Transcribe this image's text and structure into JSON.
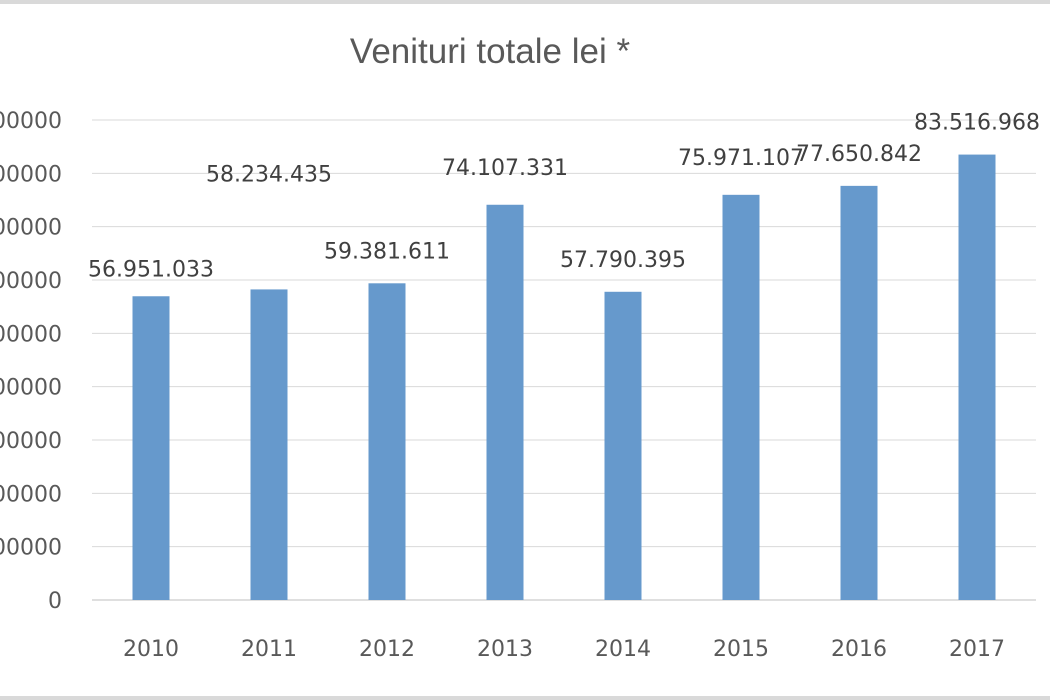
{
  "chart_data": {
    "type": "bar",
    "title": "Venituri totale lei *",
    "categories": [
      "2010",
      "2011",
      "2012",
      "2013",
      "2014",
      "2015",
      "2016",
      "2017"
    ],
    "values": [
      56951033,
      58234435,
      59381611,
      74107331,
      57790395,
      75971107,
      77650842,
      83516968
    ],
    "data_labels": [
      "56.951.033",
      "58.234.435",
      "59.381.611",
      "74.107.331",
      "57.790.395",
      "75.971.107",
      "77.650.842",
      "83.516.968"
    ],
    "y_tick_labels": [
      "0",
      "00000",
      "00000",
      "00000",
      "00000",
      "00000",
      "00000",
      "00000",
      "00000",
      "00000"
    ],
    "ylim": [
      0,
      90000000
    ],
    "y_step": 10000000,
    "bar_color": "#6699cc",
    "grid": true
  }
}
